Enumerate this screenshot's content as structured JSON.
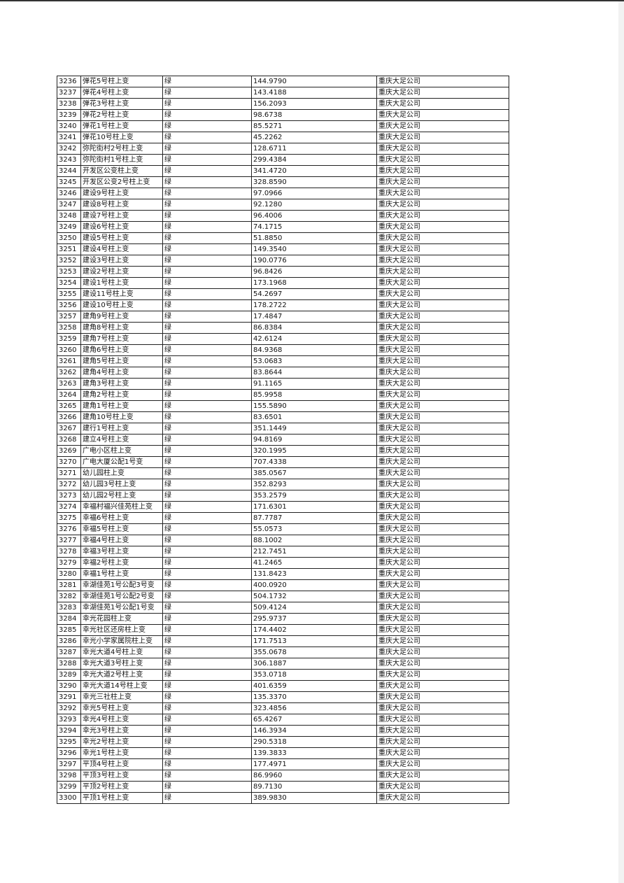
{
  "table": {
    "rows": [
      [
        "3236",
        "弹花5号柱上变",
        "绿",
        "144.9790",
        "重庆大足公司"
      ],
      [
        "3237",
        "弹花4号柱上变",
        "绿",
        "143.4188",
        "重庆大足公司"
      ],
      [
        "3238",
        "弹花3号柱上变",
        "绿",
        "156.2093",
        "重庆大足公司"
      ],
      [
        "3239",
        "弹花2号柱上变",
        "绿",
        "98.6738",
        "重庆大足公司"
      ],
      [
        "3240",
        "弹花1号柱上变",
        "绿",
        "85.5271",
        "重庆大足公司"
      ],
      [
        "3241",
        "弹花10号柱上变",
        "绿",
        "45.2262",
        "重庆大足公司"
      ],
      [
        "3242",
        "弥陀街村2号柱上变",
        "绿",
        "128.6711",
        "重庆大足公司"
      ],
      [
        "3243",
        "弥陀街村1号柱上变",
        "绿",
        "299.4384",
        "重庆大足公司"
      ],
      [
        "3244",
        "开发区公变柱上变",
        "绿",
        "341.4720",
        "重庆大足公司"
      ],
      [
        "3245",
        "开发区公变2号柱上变",
        "绿",
        "328.8590",
        "重庆大足公司"
      ],
      [
        "3246",
        "建设9号柱上变",
        "绿",
        "97.0966",
        "重庆大足公司"
      ],
      [
        "3247",
        "建设8号柱上变",
        "绿",
        "92.1280",
        "重庆大足公司"
      ],
      [
        "3248",
        "建设7号柱上变",
        "绿",
        "96.4006",
        "重庆大足公司"
      ],
      [
        "3249",
        "建设6号柱上变",
        "绿",
        "74.1715",
        "重庆大足公司"
      ],
      [
        "3250",
        "建设5号柱上变",
        "绿",
        "51.8850",
        "重庆大足公司"
      ],
      [
        "3251",
        "建设4号柱上变",
        "绿",
        "149.3540",
        "重庆大足公司"
      ],
      [
        "3252",
        "建设3号柱上变",
        "绿",
        "190.0776",
        "重庆大足公司"
      ],
      [
        "3253",
        "建设2号柱上变",
        "绿",
        "96.8426",
        "重庆大足公司"
      ],
      [
        "3254",
        "建设1号柱上变",
        "绿",
        "173.1968",
        "重庆大足公司"
      ],
      [
        "3255",
        "建设11号柱上变",
        "绿",
        "54.2697",
        "重庆大足公司"
      ],
      [
        "3256",
        "建设10号柱上变",
        "绿",
        "178.2722",
        "重庆大足公司"
      ],
      [
        "3257",
        "建角9号柱上变",
        "绿",
        "17.4847",
        "重庆大足公司"
      ],
      [
        "3258",
        "建角8号柱上变",
        "绿",
        "86.8384",
        "重庆大足公司"
      ],
      [
        "3259",
        "建角7号柱上变",
        "绿",
        "42.6124",
        "重庆大足公司"
      ],
      [
        "3260",
        "建角6号柱上变",
        "绿",
        "84.9368",
        "重庆大足公司"
      ],
      [
        "3261",
        "建角5号柱上变",
        "绿",
        "53.0683",
        "重庆大足公司"
      ],
      [
        "3262",
        "建角4号柱上变",
        "绿",
        "83.8644",
        "重庆大足公司"
      ],
      [
        "3263",
        "建角3号柱上变",
        "绿",
        "91.1165",
        "重庆大足公司"
      ],
      [
        "3264",
        "建角2号柱上变",
        "绿",
        "85.9958",
        "重庆大足公司"
      ],
      [
        "3265",
        "建角1号柱上变",
        "绿",
        "155.5890",
        "重庆大足公司"
      ],
      [
        "3266",
        "建角10号柱上变",
        "绿",
        "83.6501",
        "重庆大足公司"
      ],
      [
        "3267",
        "建行1号柱上变",
        "绿",
        "351.1449",
        "重庆大足公司"
      ],
      [
        "3268",
        "建立4号柱上变",
        "绿",
        "94.8169",
        "重庆大足公司"
      ],
      [
        "3269",
        "广电小区柱上变",
        "绿",
        "320.1995",
        "重庆大足公司"
      ],
      [
        "3270",
        "广电大厦公配1号变",
        "绿",
        "707.4338",
        "重庆大足公司"
      ],
      [
        "3271",
        "幼儿园柱上变",
        "绿",
        "385.0567",
        "重庆大足公司"
      ],
      [
        "3272",
        "幼儿园3号柱上变",
        "绿",
        "352.8293",
        "重庆大足公司"
      ],
      [
        "3273",
        "幼儿园2号柱上变",
        "绿",
        "353.2579",
        "重庆大足公司"
      ],
      [
        "3274",
        "幸福村福兴佳苑柱上变",
        "绿",
        "171.6301",
        "重庆大足公司"
      ],
      [
        "3275",
        "幸福6号柱上变",
        "绿",
        "87.7787",
        "重庆大足公司"
      ],
      [
        "3276",
        "幸福5号柱上变",
        "绿",
        "55.0573",
        "重庆大足公司"
      ],
      [
        "3277",
        "幸福4号柱上变",
        "绿",
        "88.1002",
        "重庆大足公司"
      ],
      [
        "3278",
        "幸福3号柱上变",
        "绿",
        "212.7451",
        "重庆大足公司"
      ],
      [
        "3279",
        "幸福2号柱上变",
        "绿",
        "41.2465",
        "重庆大足公司"
      ],
      [
        "3280",
        "幸福1号柱上变",
        "绿",
        "131.8423",
        "重庆大足公司"
      ],
      [
        "3281",
        "幸湖佳苑1号公配3号变",
        "绿",
        "400.0920",
        "重庆大足公司"
      ],
      [
        "3282",
        "幸湖佳苑1号公配2号变",
        "绿",
        "504.1732",
        "重庆大足公司"
      ],
      [
        "3283",
        "幸湖佳苑1号公配1号变",
        "绿",
        "509.4124",
        "重庆大足公司"
      ],
      [
        "3284",
        "幸光花园柱上变",
        "绿",
        "295.9737",
        "重庆大足公司"
      ],
      [
        "3285",
        "幸光社区还房柱上变",
        "绿",
        "174.4402",
        "重庆大足公司"
      ],
      [
        "3286",
        "幸光小学家属院柱上变",
        "绿",
        "171.7513",
        "重庆大足公司"
      ],
      [
        "3287",
        "幸光大道4号柱上变",
        "绿",
        "355.0678",
        "重庆大足公司"
      ],
      [
        "3288",
        "幸光大道3号柱上变",
        "绿",
        "306.1887",
        "重庆大足公司"
      ],
      [
        "3289",
        "幸光大道2号柱上变",
        "绿",
        "353.0718",
        "重庆大足公司"
      ],
      [
        "3290",
        "幸光大道14号柱上变",
        "绿",
        "401.6359",
        "重庆大足公司"
      ],
      [
        "3291",
        "幸光三社柱上变",
        "绿",
        "135.3370",
        "重庆大足公司"
      ],
      [
        "3292",
        "幸光5号柱上变",
        "绿",
        "323.4856",
        "重庆大足公司"
      ],
      [
        "3293",
        "幸光4号柱上变",
        "绿",
        "65.4267",
        "重庆大足公司"
      ],
      [
        "3294",
        "幸光3号柱上变",
        "绿",
        "146.3934",
        "重庆大足公司"
      ],
      [
        "3295",
        "幸光2号柱上变",
        "绿",
        "290.5318",
        "重庆大足公司"
      ],
      [
        "3296",
        "幸光1号柱上变",
        "绿",
        "139.3833",
        "重庆大足公司"
      ],
      [
        "3297",
        "平顶4号柱上变",
        "绿",
        "177.4971",
        "重庆大足公司"
      ],
      [
        "3298",
        "平顶3号柱上变",
        "绿",
        "86.9960",
        "重庆大足公司"
      ],
      [
        "3299",
        "平顶2号柱上变",
        "绿",
        "89.7130",
        "重庆大足公司"
      ],
      [
        "3300",
        "平顶1号柱上变",
        "绿",
        "389.9830",
        "重庆大足公司"
      ]
    ]
  }
}
